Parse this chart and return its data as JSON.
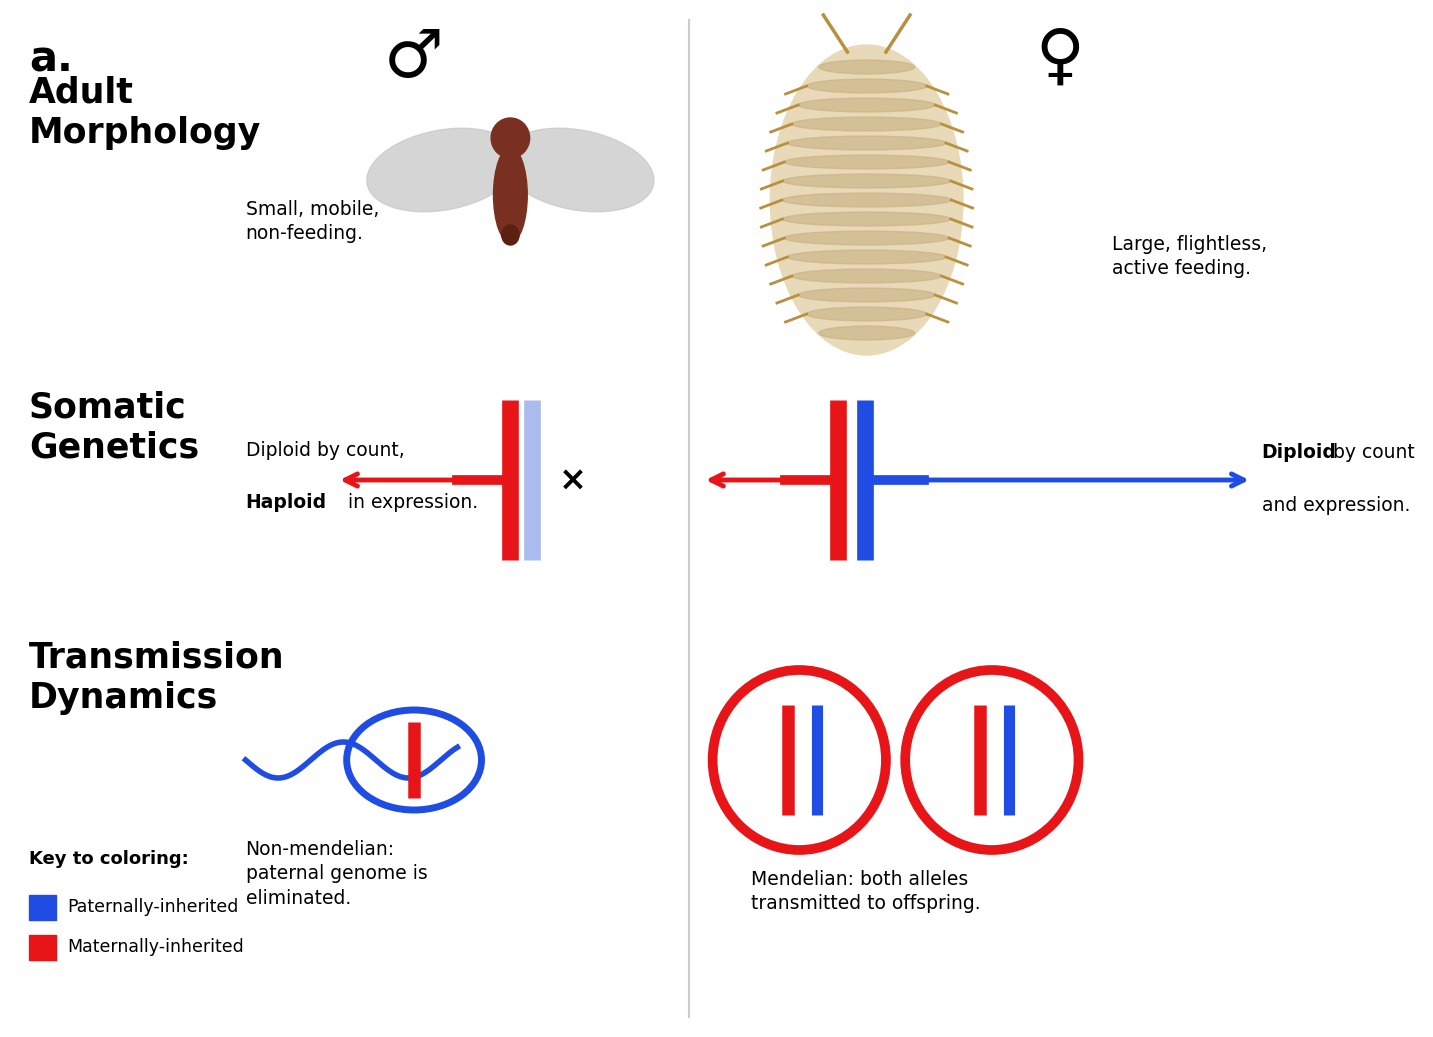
{
  "bg_color": "#ffffff",
  "red_color": "#e81518",
  "blue_color": "#1f4de4",
  "blue_light_color": "#aabbee",
  "body_text_size": 13.5,
  "header_bold_size": 25,
  "a_label": "a.",
  "adult_morph": "Adult\nMorphology",
  "somatic": "Somatic\nGenetics",
  "transmission": "Transmission\nDynamics",
  "male_desc": "Small, mobile,\nnon-feeding.",
  "female_desc": "Large, flightless,\nactive feeding.",
  "male_genetics_line1": "Diploid by count,",
  "male_genetics_line2_bold": "Haploid",
  "male_genetics_line2_rest": " in expression.",
  "female_genetics_bold": "Diploid",
  "female_genetics_rest": " by count\nand expression.",
  "male_transmission_desc": "Non-mendelian:\npaternal genome is\neliminated.",
  "female_transmission_desc": "Mendelian: both alleles\ntransmitted to offspring.",
  "key_title": "Key to coloring:",
  "key_blue": "Paternally-inherited",
  "key_red": "Maternally-inherited"
}
